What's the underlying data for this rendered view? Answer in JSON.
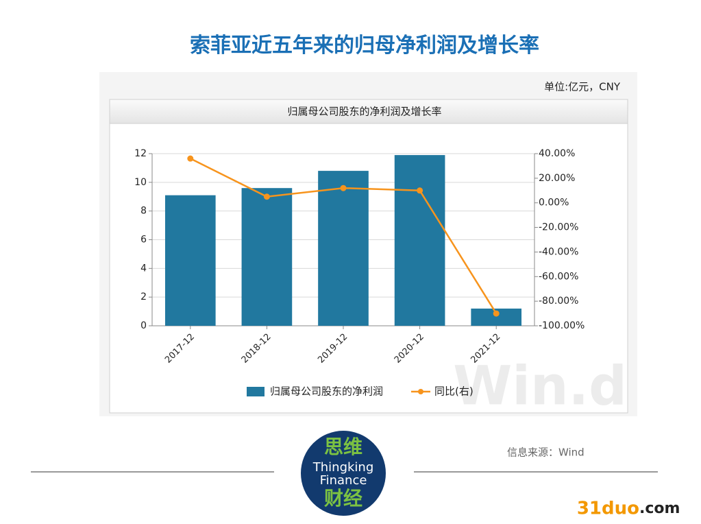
{
  "page_title": "索菲亚近五年来的归母净利润及增长率",
  "unit": "单位:亿元，CNY",
  "source": "信息来源：Wind",
  "watermark": "Win.d",
  "logo": {
    "line1": "思维",
    "line2": "Thingking",
    "line3": "Finance",
    "line4": "财经"
  },
  "site": {
    "part1": "31duo",
    "part2": ".com"
  },
  "chart_data": {
    "type": "bar",
    "title": "归属母公司股东的净利润及增长率",
    "categories": [
      "2017-12",
      "2018-12",
      "2019-12",
      "2020-12",
      "2021-12"
    ],
    "series": [
      {
        "name": "归属母公司股东的净利润",
        "type": "bar",
        "color": "#21789f",
        "values": [
          9.1,
          9.6,
          10.8,
          11.9,
          1.2
        ]
      },
      {
        "name": "同比(右)",
        "type": "line",
        "axis": "y2",
        "color": "#f7941d",
        "values": [
          36,
          5,
          12,
          10,
          -90
        ]
      }
    ],
    "ylim": [
      0,
      12
    ],
    "yticks": [
      0,
      2,
      4,
      6,
      8,
      10,
      12
    ],
    "y2lim": [
      -100,
      40
    ],
    "y2ticks": [
      {
        "value": -100,
        "label": "-100.00%"
      },
      {
        "value": -80,
        "label": "-80.00%"
      },
      {
        "value": -60,
        "label": "-60.00%"
      },
      {
        "value": -40,
        "label": "-40.00%"
      },
      {
        "value": -20,
        "label": "-20.00%"
      },
      {
        "value": 0,
        "label": "0.00%"
      },
      {
        "value": 20,
        "label": "20.00%"
      },
      {
        "value": 40,
        "label": "40.00%"
      }
    ],
    "grid": true
  }
}
